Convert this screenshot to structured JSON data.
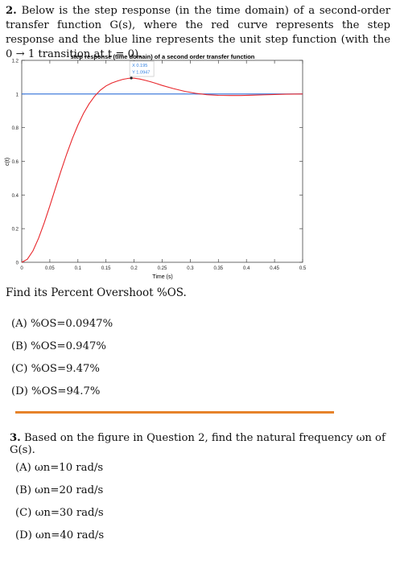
{
  "question2": {
    "number": "2.",
    "text": "Below is the step response (in the time domain) of a second-order transfer function G(s), where the red curve represents the step response and the blue line represents the unit step function (with the 0 → 1 transition at t = 0).",
    "find": "Find its Percent Overshoot %OS.",
    "options": [
      "(A)  %OS=0.0947%",
      "(B)  %OS=0.947%",
      "(C)  %OS=9.47%",
      "(D)  %OS=94.7%"
    ]
  },
  "question3": {
    "number": "3.",
    "text": "Based on the figure in Question 2, find the natural frequency ωn of G(s).",
    "options": [
      "(A)  ωn=10 rad/s",
      "(B)  ωn=20 rad/s",
      "(C)  ωn=30 rad/s",
      "(D)  ωn=40 rad/s"
    ]
  },
  "colors": {
    "response": "#e8262b",
    "step": "#2f6fd8",
    "divider": "#e6832a",
    "datatip": "#2f7fe0"
  },
  "chart_data": {
    "type": "line",
    "title": "step response (time domain) of a second order transfer function",
    "xlabel": "Time (s)",
    "ylabel": "c(t)",
    "xlim": [
      0,
      0.5
    ],
    "ylim": [
      0,
      1.2
    ],
    "xticks": [
      "0",
      "0.05",
      "0.1",
      "0.15",
      "0.2",
      "0.25",
      "0.3",
      "0.35",
      "0.4",
      "0.45",
      "0.5"
    ],
    "yticks": [
      "0",
      "0.2",
      "0.4",
      "0.6",
      "0.8",
      "1",
      "1.2"
    ],
    "series": [
      {
        "color": "#e8262b",
        "x": [
          0,
          0.01,
          0.02,
          0.03,
          0.04,
          0.05,
          0.06,
          0.07,
          0.08,
          0.09,
          0.1,
          0.11,
          0.12,
          0.13,
          0.14,
          0.15,
          0.16,
          0.17,
          0.18,
          0.19,
          0.195,
          0.2,
          0.21,
          0.22,
          0.23,
          0.24,
          0.25,
          0.27,
          0.29,
          0.31,
          0.33,
          0.35,
          0.37,
          0.39,
          0.41,
          0.43,
          0.45,
          0.47,
          0.5
        ],
        "y": [
          0,
          0.018,
          0.068,
          0.143,
          0.234,
          0.335,
          0.44,
          0.544,
          0.643,
          0.734,
          0.815,
          0.885,
          0.942,
          0.988,
          1.023,
          1.048,
          1.065,
          1.077,
          1.087,
          1.093,
          1.0947,
          1.094,
          1.089,
          1.081,
          1.072,
          1.062,
          1.051,
          1.032,
          1.016,
          1.004,
          0.996,
          0.992,
          0.991,
          0.991,
          0.993,
          0.995,
          0.997,
          0.999,
          1.0
        ]
      },
      {
        "color": "#2f6fd8",
        "x": [
          0,
          0.5
        ],
        "y": [
          1,
          1
        ]
      }
    ],
    "datatip": {
      "x_label": "X 0.195",
      "y_label": "Y 1.0947",
      "x": 0.195,
      "y": 1.0947
    }
  }
}
